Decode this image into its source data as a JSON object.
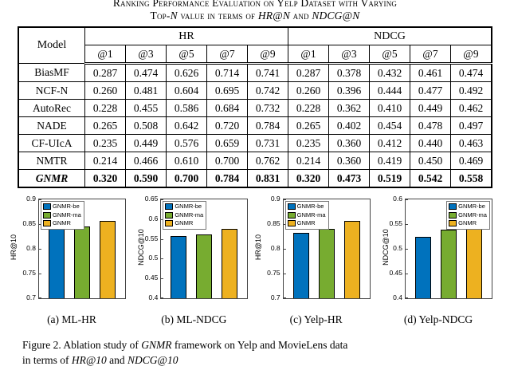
{
  "title": {
    "line1": "Ranking Performance Evaluation on Yelp Dataset with Varying",
    "line2": {
      "s1": "Top-",
      "s2": "N",
      "s3": " value in terms of ",
      "s4": "HR@N",
      "s5": " and ",
      "s6": "NDCG@N"
    }
  },
  "table": {
    "model_header": "Model",
    "group_headers": [
      "HR",
      "NDCG"
    ],
    "sub_headers": [
      "@1",
      "@3",
      "@5",
      "@7",
      "@9",
      "@1",
      "@3",
      "@5",
      "@7",
      "@9"
    ],
    "rows": [
      {
        "model": "BiasMF",
        "emphasis": false,
        "values": [
          "0.287",
          "0.474",
          "0.626",
          "0.714",
          "0.741",
          "0.287",
          "0.378",
          "0.432",
          "0.461",
          "0.474"
        ]
      },
      {
        "model": "NCF-N",
        "emphasis": false,
        "values": [
          "0.260",
          "0.481",
          "0.604",
          "0.695",
          "0.742",
          "0.260",
          "0.396",
          "0.444",
          "0.477",
          "0.492"
        ]
      },
      {
        "model": "AutoRec",
        "emphasis": false,
        "values": [
          "0.228",
          "0.455",
          "0.586",
          "0.684",
          "0.732",
          "0.228",
          "0.362",
          "0.410",
          "0.449",
          "0.462"
        ]
      },
      {
        "model": "NADE",
        "emphasis": false,
        "values": [
          "0.265",
          "0.508",
          "0.642",
          "0.720",
          "0.784",
          "0.265",
          "0.402",
          "0.454",
          "0.478",
          "0.497"
        ]
      },
      {
        "model": "CF-UIcA",
        "emphasis": false,
        "values": [
          "0.235",
          "0.449",
          "0.576",
          "0.659",
          "0.731",
          "0.235",
          "0.360",
          "0.412",
          "0.440",
          "0.463"
        ]
      },
      {
        "model": "NMTR",
        "emphasis": false,
        "values": [
          "0.214",
          "0.466",
          "0.610",
          "0.700",
          "0.762",
          "0.214",
          "0.360",
          "0.419",
          "0.450",
          "0.469"
        ]
      },
      {
        "model": "GNMR",
        "emphasis": true,
        "values": [
          "0.320",
          "0.590",
          "0.700",
          "0.784",
          "0.831",
          "0.320",
          "0.473",
          "0.519",
          "0.542",
          "0.558"
        ]
      }
    ]
  },
  "legend_series": [
    "GNMR-be",
    "GNMR-ma",
    "GNMR"
  ],
  "bar_colors": [
    "#0072BD",
    "#77AC30",
    "#EDB120"
  ],
  "chart_data": [
    {
      "type": "bar",
      "caption": "(a) ML-HR",
      "ylabel": "HR@10",
      "ylim": [
        0.7,
        0.9
      ],
      "yticks": [
        0.7,
        0.75,
        0.8,
        0.85,
        0.9
      ],
      "categories": [
        "GNMR-be",
        "GNMR-ma",
        "GNMR"
      ],
      "values": [
        0.842,
        0.846,
        0.856
      ],
      "legend_position": "top-left",
      "grid": false
    },
    {
      "type": "bar",
      "caption": "(b) ML-NDCG",
      "ylabel": "NDCG@10",
      "ylim": [
        0.4,
        0.65
      ],
      "yticks": [
        0.4,
        0.45,
        0.5,
        0.55,
        0.6,
        0.65
      ],
      "categories": [
        "GNMR-be",
        "GNMR-ma",
        "GNMR"
      ],
      "values": [
        0.557,
        0.562,
        0.576
      ],
      "legend_position": "top-left",
      "grid": false
    },
    {
      "type": "bar",
      "caption": "(c) Yelp-HR",
      "ylabel": "HR@10",
      "ylim": [
        0.7,
        0.9
      ],
      "yticks": [
        0.7,
        0.75,
        0.8,
        0.85,
        0.9
      ],
      "categories": [
        "GNMR-be",
        "GNMR-ma",
        "GNMR"
      ],
      "values": [
        0.832,
        0.84,
        0.856
      ],
      "legend_position": "top-left",
      "grid": false
    },
    {
      "type": "bar",
      "caption": "(d) Yelp-NDCG",
      "ylabel": "NDCG@10",
      "ylim": [
        0.4,
        0.6
      ],
      "yticks": [
        0.4,
        0.45,
        0.5,
        0.55,
        0.6
      ],
      "categories": [
        "GNMR-be",
        "GNMR-ma",
        "GNMR"
      ],
      "values": [
        0.525,
        0.538,
        0.556
      ],
      "legend_position": "top-right",
      "grid": false
    }
  ],
  "figure_caption": {
    "s1": "Figure 2.  Ablation study of ",
    "s2": "GNMR",
    "s3": " framework on Yelp and MovieLens data",
    "s4": "in terms of ",
    "s5": "HR@10",
    "s6": " and ",
    "s7": "NDCG@10"
  }
}
